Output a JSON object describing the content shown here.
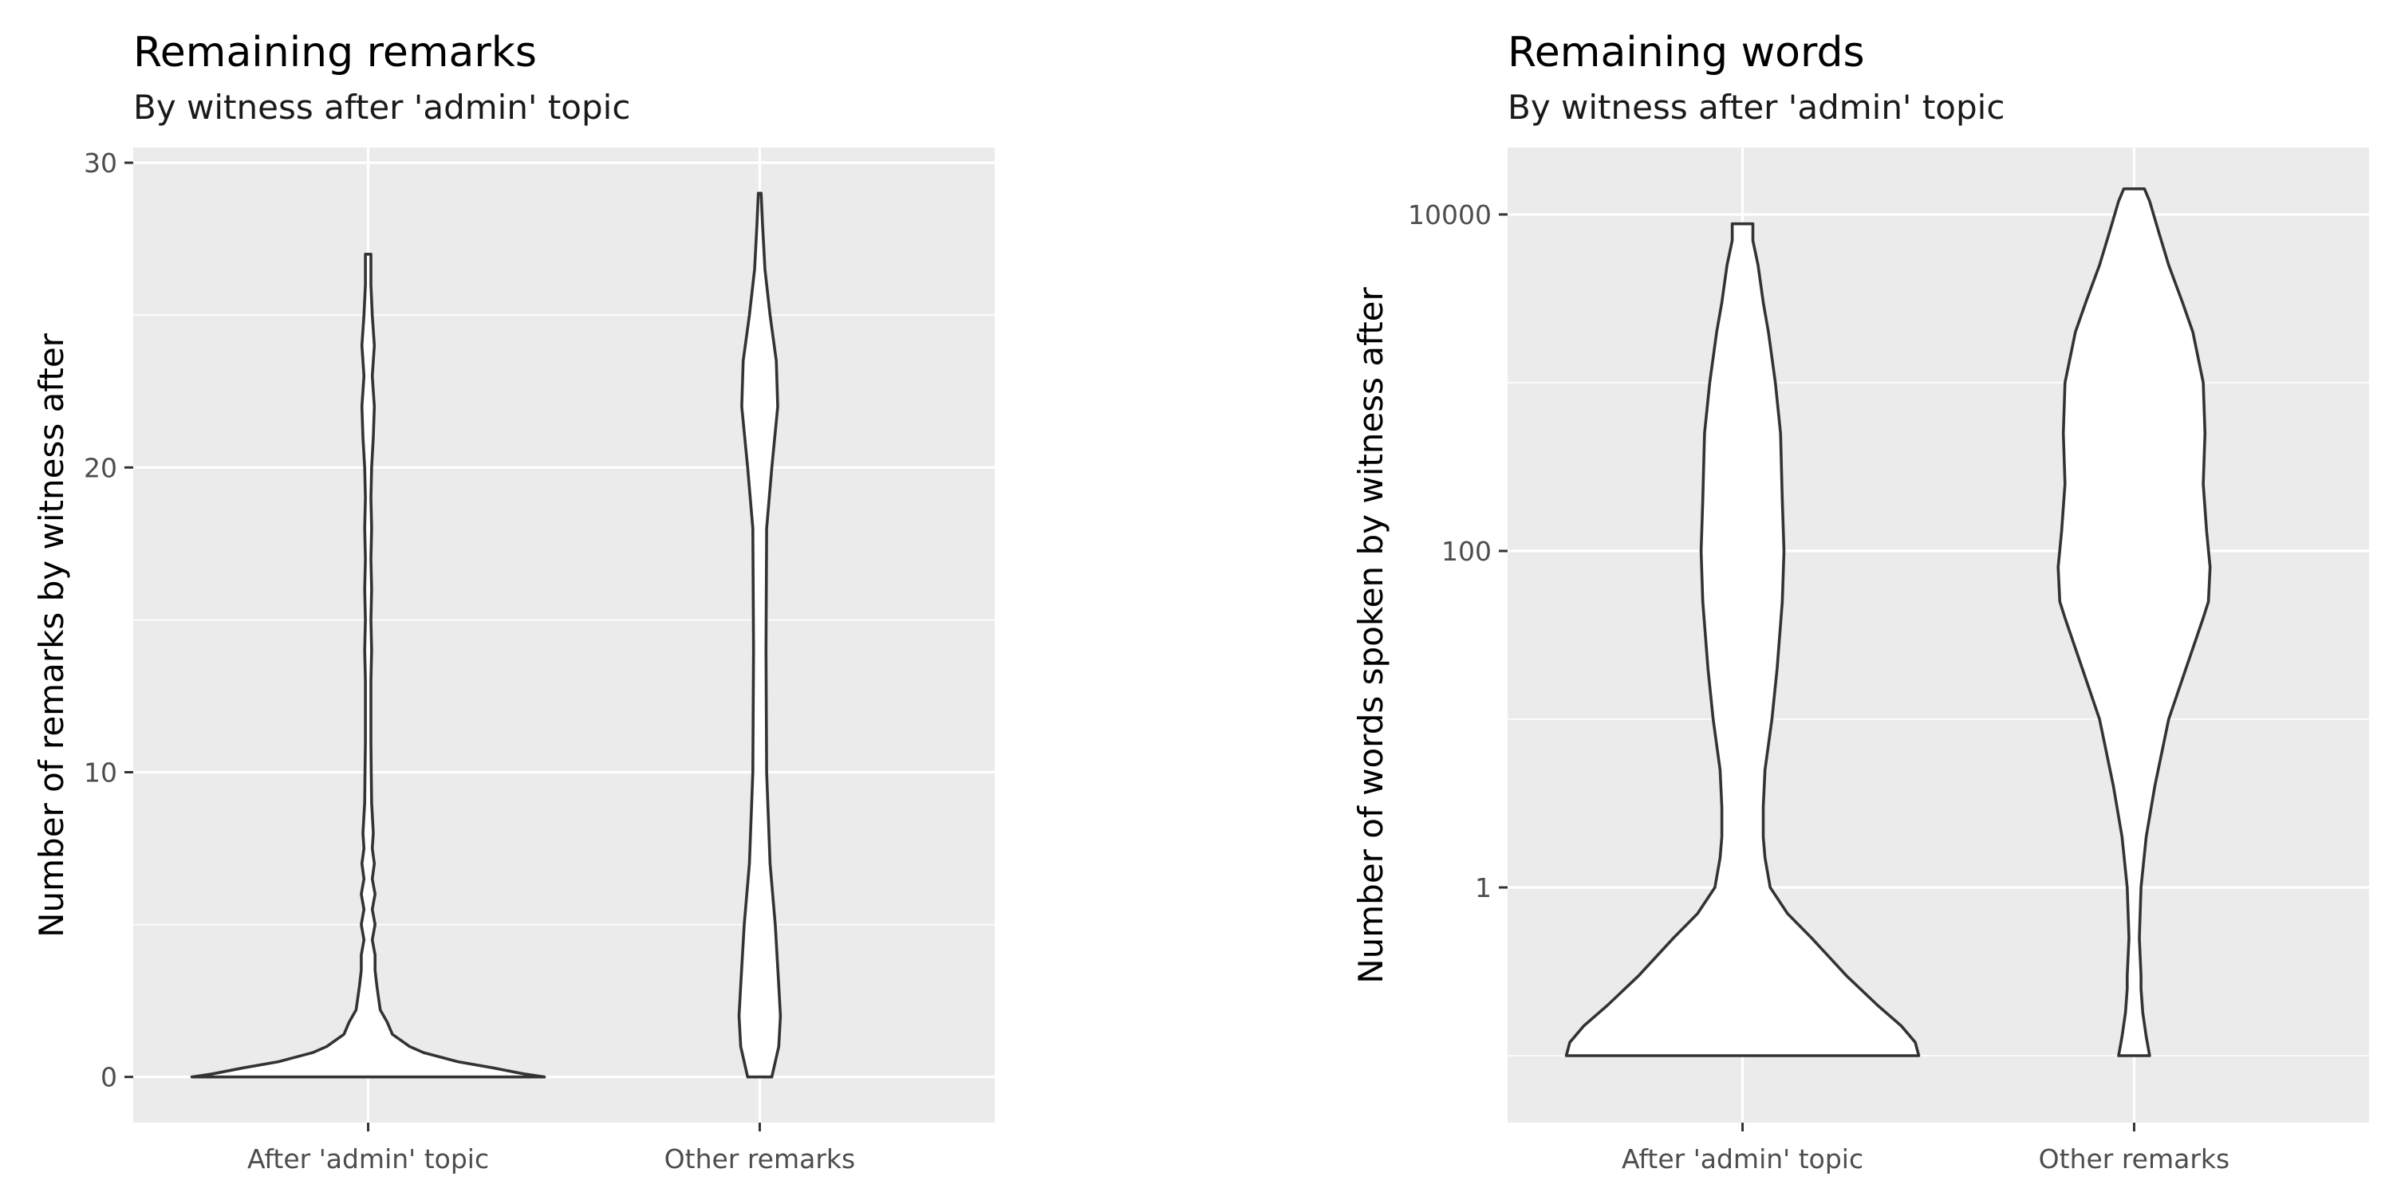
{
  "chart_data": [
    {
      "type": "violin",
      "title": "Remaining remarks",
      "subtitle": "By witness after 'admin' topic",
      "xlabel": "",
      "ylabel": "Number of remarks by witness after",
      "categories": [
        "After 'admin' topic",
        "Other remarks"
      ],
      "y_scale": "linear",
      "ylim": [
        -1.5,
        30.5
      ],
      "y_ticks": [
        0,
        10,
        20,
        30
      ],
      "y_tick_labels": [
        "0",
        "10",
        "20",
        "30"
      ],
      "y_minor_ticks": [
        5,
        15,
        25
      ],
      "grid": true,
      "legend": "none",
      "colors": {
        "panel": "#ebebeb",
        "fill": "#ffffff",
        "outline": "#333333"
      },
      "series": [
        {
          "category": "After 'admin' topic",
          "profile": [
            [
              0,
              0.51
            ],
            [
              0.1,
              0.45
            ],
            [
              0.3,
              0.36
            ],
            [
              0.5,
              0.26
            ],
            [
              0.8,
              0.16
            ],
            [
              1.0,
              0.12
            ],
            [
              1.4,
              0.07
            ],
            [
              1.8,
              0.055
            ],
            [
              2.2,
              0.035
            ],
            [
              2.6,
              0.03
            ],
            [
              3.0,
              0.025
            ],
            [
              3.5,
              0.02
            ],
            [
              4.0,
              0.02
            ],
            [
              4.5,
              0.012
            ],
            [
              5,
              0.02
            ],
            [
              5.5,
              0.012
            ],
            [
              6,
              0.02
            ],
            [
              6.5,
              0.012
            ],
            [
              7,
              0.018
            ],
            [
              7.5,
              0.012
            ],
            [
              8,
              0.015
            ],
            [
              9,
              0.01
            ],
            [
              10,
              0.009
            ],
            [
              11,
              0.008
            ],
            [
              12,
              0.008
            ],
            [
              13,
              0.008
            ],
            [
              14,
              0.01
            ],
            [
              15,
              0.008
            ],
            [
              16,
              0.01
            ],
            [
              17,
              0.008
            ],
            [
              18,
              0.01
            ],
            [
              19,
              0.008
            ],
            [
              20,
              0.01
            ],
            [
              21,
              0.015
            ],
            [
              22,
              0.018
            ],
            [
              23,
              0.012
            ],
            [
              24,
              0.018
            ],
            [
              25,
              0.012
            ],
            [
              26,
              0.008
            ],
            [
              26.6,
              0.008
            ],
            [
              27,
              0.008
            ]
          ]
        },
        {
          "category": "Other remarks",
          "profile": [
            [
              0,
              0.035
            ],
            [
              1.0,
              0.055
            ],
            [
              2.0,
              0.06
            ],
            [
              3.0,
              0.055
            ],
            [
              5.0,
              0.045
            ],
            [
              7.0,
              0.03
            ],
            [
              10,
              0.02
            ],
            [
              14,
              0.018
            ],
            [
              18,
              0.02
            ],
            [
              20,
              0.035
            ],
            [
              22,
              0.052
            ],
            [
              23.5,
              0.048
            ],
            [
              25,
              0.03
            ],
            [
              26.5,
              0.015
            ],
            [
              28,
              0.008
            ],
            [
              29,
              0.004
            ]
          ]
        }
      ]
    },
    {
      "type": "violin",
      "title": "Remaining words",
      "subtitle": "By witness after 'admin' topic",
      "xlabel": "",
      "ylabel": "Number of words spoken by witness after",
      "categories": [
        "After 'admin' topic",
        "Other remarks"
      ],
      "y_scale": "log10",
      "ylim": [
        0.04,
        25000
      ],
      "y_ticks": [
        1,
        100,
        10000
      ],
      "y_tick_labels": [
        "1",
        "100",
        "10000"
      ],
      "y_minor_ticks": [
        0.1,
        10,
        1000
      ],
      "grid": true,
      "legend": "none",
      "colors": {
        "panel": "#ebebeb",
        "fill": "#ffffff",
        "outline": "#333333"
      },
      "series": [
        {
          "category": "After 'admin' topic",
          "profile": [
            [
              0.1,
              0.51
            ],
            [
              0.12,
              0.5
            ],
            [
              0.15,
              0.46
            ],
            [
              0.2,
              0.39
            ],
            [
              0.3,
              0.3
            ],
            [
              0.5,
              0.2
            ],
            [
              0.7,
              0.13
            ],
            [
              1,
              0.08
            ],
            [
              1.5,
              0.065
            ],
            [
              2,
              0.06
            ],
            [
              3,
              0.06
            ],
            [
              5,
              0.065
            ],
            [
              10,
              0.085
            ],
            [
              20,
              0.1
            ],
            [
              50,
              0.115
            ],
            [
              100,
              0.12
            ],
            [
              200,
              0.115
            ],
            [
              500,
              0.11
            ],
            [
              1000,
              0.095
            ],
            [
              2000,
              0.075
            ],
            [
              3000,
              0.06
            ],
            [
              5000,
              0.045
            ],
            [
              7000,
              0.03
            ],
            [
              8800,
              0.03
            ]
          ]
        },
        {
          "category": "Other remarks",
          "profile": [
            [
              0.1,
              0.045
            ],
            [
              0.13,
              0.035
            ],
            [
              0.18,
              0.025
            ],
            [
              0.25,
              0.02
            ],
            [
              0.3,
              0.02
            ],
            [
              0.5,
              0.015
            ],
            [
              1,
              0.02
            ],
            [
              2,
              0.035
            ],
            [
              4,
              0.06
            ],
            [
              10,
              0.1
            ],
            [
              20,
              0.15
            ],
            [
              40,
              0.2
            ],
            [
              50,
              0.215
            ],
            [
              80,
              0.22
            ],
            [
              130,
              0.21
            ],
            [
              250,
              0.2
            ],
            [
              500,
              0.205
            ],
            [
              1000,
              0.2
            ],
            [
              2000,
              0.17
            ],
            [
              3000,
              0.14
            ],
            [
              5000,
              0.1
            ],
            [
              8000,
              0.07
            ],
            [
              12000,
              0.045
            ],
            [
              14200,
              0.03
            ]
          ]
        }
      ]
    }
  ]
}
